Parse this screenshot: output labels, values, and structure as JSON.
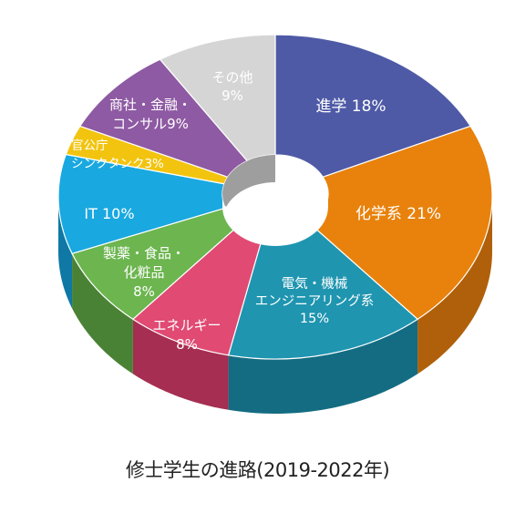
{
  "caption": "修士学生の進路(2019-2022年)",
  "chart_data": {
    "type": "pie",
    "variant": "3d-donut",
    "title": "修士学生の進路(2019-2022年)",
    "start": "top (12 o'clock)",
    "direction": "clockwise",
    "slices": [
      {
        "name": "進学",
        "value": 18,
        "label_lines": [
          "進学 18%"
        ],
        "color": "#4e5aa6",
        "side_color": "#333d7a"
      },
      {
        "name": "化学系",
        "value": 21,
        "label_lines": [
          "化学系 21%"
        ],
        "color": "#e8820c",
        "side_color": "#b0600a"
      },
      {
        "name": "電気・機械エンジニアリング系",
        "value": 15,
        "label_lines": [
          "電気・機械",
          "エンジニアリング系",
          "15%"
        ],
        "color": "#1f95b0",
        "side_color": "#136c82"
      },
      {
        "name": "エネルギー",
        "value": 8,
        "label_lines": [
          "エネルギー",
          "8%"
        ],
        "color": "#e04a73",
        "side_color": "#a62e52"
      },
      {
        "name": "製薬・食品・化粧品",
        "value": 8,
        "label_lines": [
          "製薬・食品・",
          "化粧品",
          "8%"
        ],
        "color": "#6cb54f",
        "side_color": "#4a8235"
      },
      {
        "name": "IT",
        "value": 10,
        "label_lines": [
          "IT 10%"
        ],
        "color": "#19a8e0",
        "side_color": "#0f78a4"
      },
      {
        "name": "官公庁シンクタンク",
        "value": 3,
        "label_lines": [
          "官公庁",
          "シンクタンク3%"
        ],
        "color": "#f2c40f",
        "side_color": "#b8920a"
      },
      {
        "name": "商社・金融・コンサル",
        "value": 9,
        "label_lines": [
          "商社・金融・",
          "コンサル9%"
        ],
        "color": "#8e5aa3",
        "side_color": "#663d78"
      },
      {
        "name": "その他",
        "value": 9,
        "label_lines": [
          "その他",
          "9%"
        ],
        "color": "#d5d5d5",
        "side_color": "#9e9e9e"
      }
    ]
  }
}
